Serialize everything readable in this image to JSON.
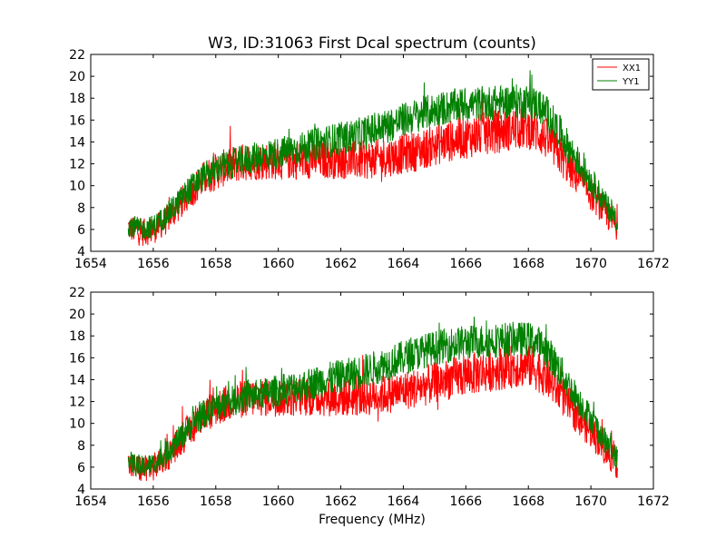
{
  "figure": {
    "title": "W3, ID:31063 First Dcal spectrum (counts)",
    "xlabel": "Frequency (MHz)"
  },
  "colors": {
    "XX1": "#ff0000",
    "YY1": "#008000",
    "frame": "#000000",
    "background": "#ffffff"
  },
  "chart_data": [
    {
      "type": "line",
      "title": "W3, ID:31063 First Dcal spectrum (counts)",
      "xlabel": "",
      "ylabel": "",
      "xlim": [
        1654,
        1672
      ],
      "ylim": [
        4,
        22
      ],
      "xticks": [
        1654,
        1656,
        1658,
        1660,
        1662,
        1664,
        1666,
        1668,
        1670,
        1672
      ],
      "yticks": [
        4,
        6,
        8,
        10,
        12,
        14,
        16,
        18,
        20,
        22
      ],
      "grid": false,
      "legend": {
        "placement": "top-right",
        "entries": [
          "XX1",
          "YY1"
        ]
      },
      "noise_band": {
        "XX1": 2.0,
        "YY1": 1.6
      },
      "series": [
        {
          "name": "XX1",
          "color": "#ff0000",
          "x": [
            1655.2,
            1655.6,
            1656.0,
            1656.4,
            1656.8,
            1657.2,
            1657.6,
            1658.0,
            1658.5,
            1659.0,
            1659.5,
            1660.0,
            1660.5,
            1661.0,
            1661.5,
            1662.0,
            1662.5,
            1663.0,
            1663.5,
            1664.0,
            1664.5,
            1665.0,
            1665.5,
            1666.0,
            1666.5,
            1667.0,
            1667.5,
            1668.0,
            1668.3,
            1668.6,
            1669.0,
            1669.4,
            1669.8,
            1670.2,
            1670.5,
            1670.85
          ],
          "y": [
            6.2,
            5.7,
            5.9,
            6.8,
            8.1,
            9.5,
            10.6,
            11.3,
            11.9,
            12.2,
            12.3,
            12.3,
            12.3,
            12.4,
            12.4,
            12.4,
            12.3,
            12.4,
            12.6,
            12.9,
            13.2,
            13.7,
            14.1,
            14.4,
            14.7,
            15.0,
            15.2,
            15.3,
            14.9,
            14.2,
            12.8,
            11.3,
            9.9,
            8.6,
            7.4,
            6.2
          ]
        },
        {
          "name": "YY1",
          "color": "#008000",
          "x": [
            1655.2,
            1655.6,
            1656.0,
            1656.4,
            1656.8,
            1657.2,
            1657.6,
            1658.0,
            1658.5,
            1659.0,
            1659.5,
            1660.0,
            1660.5,
            1661.0,
            1661.5,
            1662.0,
            1662.5,
            1663.0,
            1663.5,
            1664.0,
            1664.5,
            1665.0,
            1665.5,
            1666.0,
            1666.5,
            1667.0,
            1667.5,
            1668.0,
            1668.3,
            1668.6,
            1669.0,
            1669.4,
            1669.8,
            1670.2,
            1670.5,
            1670.85
          ],
          "y": [
            6.5,
            6.0,
            6.3,
            7.2,
            8.5,
            9.8,
            10.8,
            11.5,
            12.0,
            12.4,
            12.7,
            13.0,
            13.3,
            13.6,
            14.0,
            14.3,
            14.6,
            15.0,
            15.5,
            16.0,
            16.5,
            16.9,
            17.2,
            17.4,
            17.5,
            17.6,
            17.7,
            17.7,
            17.4,
            16.6,
            14.9,
            13.0,
            11.3,
            9.6,
            8.2,
            6.8
          ]
        }
      ]
    },
    {
      "type": "line",
      "title": "",
      "xlabel": "Frequency (MHz)",
      "ylabel": "",
      "xlim": [
        1654,
        1672
      ],
      "ylim": [
        4,
        22
      ],
      "xticks": [
        1654,
        1656,
        1658,
        1660,
        1662,
        1664,
        1666,
        1668,
        1670,
        1672
      ],
      "yticks": [
        4,
        6,
        8,
        10,
        12,
        14,
        16,
        18,
        20,
        22
      ],
      "grid": false,
      "legend": null,
      "noise_band": {
        "XX1": 2.0,
        "YY1": 1.6
      },
      "series": [
        {
          "color": "#ff0000",
          "x": [
            1655.2,
            1655.6,
            1656.0,
            1656.4,
            1656.8,
            1657.2,
            1657.6,
            1658.0,
            1658.5,
            1659.0,
            1659.5,
            1660.0,
            1660.5,
            1661.0,
            1661.5,
            1662.0,
            1662.5,
            1663.0,
            1663.5,
            1664.0,
            1664.5,
            1665.0,
            1665.5,
            1666.0,
            1666.5,
            1667.0,
            1667.5,
            1668.0,
            1668.3,
            1668.6,
            1669.0,
            1669.4,
            1669.8,
            1670.2,
            1670.5,
            1670.85
          ],
          "y": [
            6.2,
            5.8,
            6.0,
            6.9,
            8.2,
            9.6,
            10.7,
            11.4,
            12.0,
            12.3,
            12.4,
            12.4,
            12.4,
            12.4,
            12.4,
            12.4,
            12.4,
            12.5,
            12.7,
            13.0,
            13.3,
            13.7,
            14.1,
            14.4,
            14.7,
            15.0,
            15.2,
            15.3,
            14.9,
            14.2,
            12.8,
            11.3,
            9.9,
            8.6,
            7.4,
            6.2
          ]
        },
        {
          "color": "#008000",
          "x": [
            1655.2,
            1655.6,
            1656.0,
            1656.4,
            1656.8,
            1657.2,
            1657.6,
            1658.0,
            1658.5,
            1659.0,
            1659.5,
            1660.0,
            1660.5,
            1661.0,
            1661.5,
            1662.0,
            1662.5,
            1663.0,
            1663.5,
            1664.0,
            1664.5,
            1665.0,
            1665.5,
            1666.0,
            1666.5,
            1667.0,
            1667.5,
            1668.0,
            1668.3,
            1668.6,
            1669.0,
            1669.4,
            1669.8,
            1670.2,
            1670.5,
            1670.85
          ],
          "y": [
            6.5,
            6.0,
            6.3,
            7.2,
            8.5,
            9.8,
            10.8,
            11.5,
            12.0,
            12.4,
            12.7,
            13.0,
            13.3,
            13.6,
            14.0,
            14.3,
            14.6,
            15.0,
            15.5,
            16.0,
            16.5,
            16.9,
            17.2,
            17.4,
            17.5,
            17.6,
            17.7,
            17.7,
            17.4,
            16.6,
            14.9,
            13.0,
            11.3,
            9.6,
            8.2,
            6.8
          ]
        }
      ]
    }
  ]
}
